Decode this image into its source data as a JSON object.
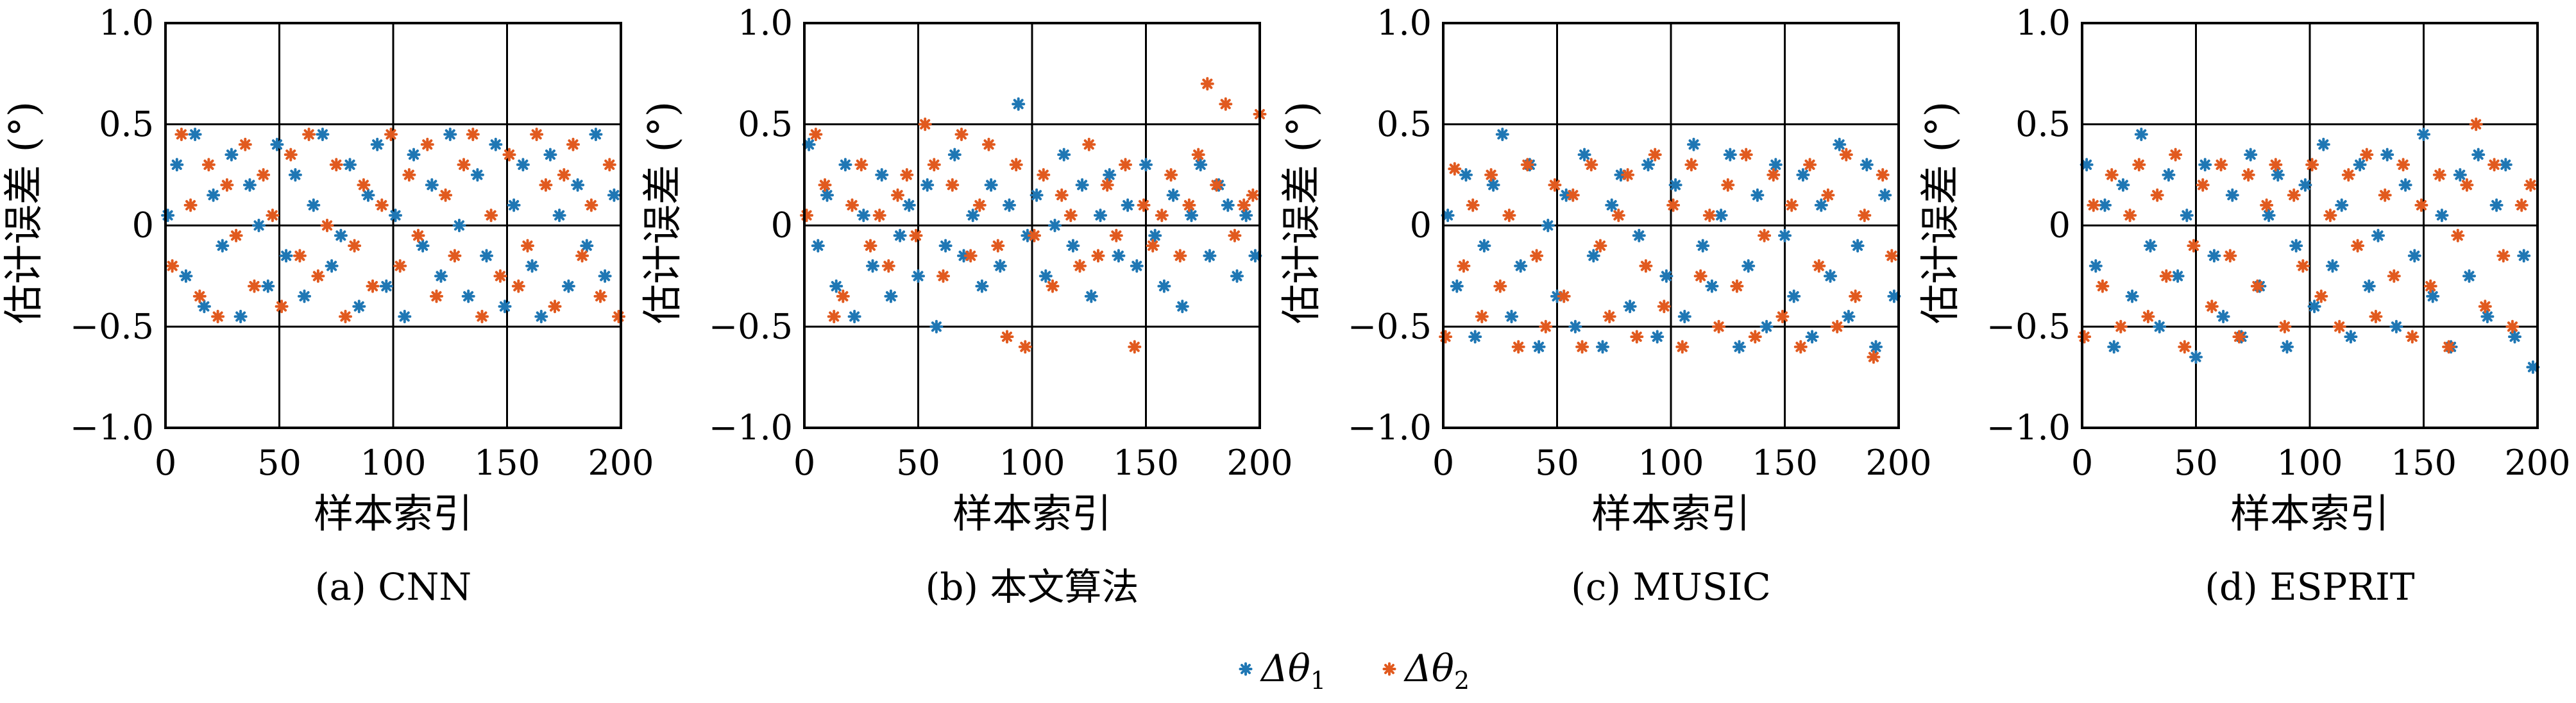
{
  "figure": {
    "legend": [
      {
        "label": "Δθ",
        "subscript": "1"
      },
      {
        "label": "Δθ",
        "subscript": "2"
      }
    ]
  },
  "colors": {
    "series1": "#1f77b4",
    "series2": "#e15a1f"
  },
  "chart_data": [
    {
      "type": "scatter",
      "caption": "(a) CNN",
      "xlabel": "样本索引",
      "ylabel": "估计误差 (°)",
      "xlim": [
        0,
        200
      ],
      "ylim": [
        -1.0,
        1.0
      ],
      "xticks": [
        0,
        50,
        100,
        150,
        200
      ],
      "yticks": [
        1.0,
        0.5,
        0,
        -0.5,
        -1.0
      ],
      "yticklabels": [
        "1.0",
        "0.5",
        "0",
        "−0.5",
        "−1.0"
      ],
      "grid": true,
      "series": [
        {
          "name": "Δθ1",
          "x": [
            1,
            5,
            9,
            13,
            17,
            21,
            25,
            29,
            33,
            37,
            41,
            45,
            49,
            53,
            57,
            61,
            65,
            69,
            73,
            77,
            81,
            85,
            89,
            93,
            97,
            101,
            105,
            109,
            113,
            117,
            121,
            125,
            129,
            133,
            137,
            141,
            145,
            149,
            153,
            157,
            161,
            165,
            169,
            173,
            177,
            181,
            185,
            189,
            193,
            197
          ],
          "y": [
            0.05,
            0.3,
            -0.25,
            0.45,
            -0.4,
            0.15,
            -0.1,
            0.35,
            -0.45,
            0.2,
            0.0,
            -0.3,
            0.4,
            -0.15,
            0.25,
            -0.35,
            0.1,
            0.45,
            -0.2,
            -0.05,
            0.3,
            -0.4,
            0.15,
            0.4,
            -0.3,
            0.05,
            -0.45,
            0.35,
            -0.1,
            0.2,
            -0.25,
            0.45,
            0.0,
            -0.35,
            0.25,
            -0.15,
            0.4,
            -0.4,
            0.1,
            0.3,
            -0.2,
            -0.45,
            0.35,
            0.05,
            -0.3,
            0.2,
            -0.1,
            0.45,
            -0.25,
            0.15
          ]
        },
        {
          "name": "Δθ2",
          "x": [
            3,
            7,
            11,
            15,
            19,
            23,
            27,
            31,
            35,
            39,
            43,
            47,
            51,
            55,
            59,
            63,
            67,
            71,
            75,
            79,
            83,
            87,
            91,
            95,
            99,
            103,
            107,
            111,
            115,
            119,
            123,
            127,
            131,
            135,
            139,
            143,
            147,
            151,
            155,
            159,
            163,
            167,
            171,
            175,
            179,
            183,
            187,
            191,
            195,
            199
          ],
          "y": [
            -0.2,
            0.45,
            0.1,
            -0.35,
            0.3,
            -0.45,
            0.2,
            -0.05,
            0.4,
            -0.3,
            0.25,
            0.05,
            -0.4,
            0.35,
            -0.15,
            0.45,
            -0.25,
            0.0,
            0.3,
            -0.45,
            -0.1,
            0.2,
            -0.3,
            0.1,
            0.45,
            -0.2,
            0.25,
            -0.05,
            0.4,
            -0.35,
            0.15,
            -0.15,
            0.3,
            0.45,
            -0.45,
            0.05,
            -0.25,
            0.35,
            -0.3,
            -0.1,
            0.45,
            0.2,
            -0.4,
            0.25,
            0.4,
            -0.15,
            0.1,
            -0.35,
            0.3,
            -0.45
          ]
        }
      ]
    },
    {
      "type": "scatter",
      "caption": "(b) 本文算法",
      "xlabel": "样本索引",
      "ylabel": "估计误差 (°)",
      "xlim": [
        0,
        200
      ],
      "ylim": [
        -1.0,
        1.0
      ],
      "xticks": [
        0,
        50,
        100,
        150,
        200
      ],
      "yticks": [
        1.0,
        0.5,
        0,
        -0.5,
        -1.0
      ],
      "yticklabels": [
        "1.0",
        "0.5",
        "0",
        "−0.5",
        "−1.0"
      ],
      "grid": true,
      "series": [
        {
          "name": "Δθ1",
          "x": [
            2,
            6,
            10,
            14,
            18,
            22,
            26,
            30,
            34,
            38,
            42,
            46,
            50,
            54,
            58,
            62,
            66,
            70,
            74,
            78,
            82,
            86,
            90,
            94,
            98,
            102,
            106,
            110,
            114,
            118,
            122,
            126,
            130,
            134,
            138,
            142,
            146,
            150,
            154,
            158,
            162,
            166,
            170,
            174,
            178,
            182,
            186,
            190,
            194,
            198
          ],
          "y": [
            0.4,
            -0.1,
            0.15,
            -0.3,
            0.3,
            -0.45,
            0.05,
            -0.2,
            0.25,
            -0.35,
            -0.05,
            0.1,
            -0.25,
            0.2,
            -0.5,
            -0.1,
            0.35,
            -0.15,
            0.05,
            -0.3,
            0.2,
            -0.2,
            0.1,
            0.6,
            -0.05,
            0.15,
            -0.25,
            0.0,
            0.35,
            -0.1,
            0.2,
            -0.35,
            0.05,
            0.25,
            -0.15,
            0.1,
            -0.2,
            0.3,
            -0.05,
            -0.3,
            0.15,
            -0.4,
            0.05,
            0.3,
            -0.15,
            0.2,
            0.1,
            -0.25,
            0.05,
            -0.15
          ]
        },
        {
          "name": "Δθ2",
          "x": [
            1,
            5,
            9,
            13,
            17,
            21,
            25,
            29,
            33,
            37,
            41,
            45,
            49,
            53,
            57,
            61,
            65,
            69,
            73,
            77,
            81,
            85,
            89,
            93,
            97,
            101,
            105,
            109,
            113,
            117,
            121,
            125,
            129,
            133,
            137,
            141,
            145,
            149,
            153,
            157,
            161,
            165,
            169,
            173,
            177,
            181,
            185,
            189,
            193,
            197,
            200
          ],
          "y": [
            0.05,
            0.45,
            0.2,
            -0.45,
            -0.35,
            0.1,
            0.3,
            -0.1,
            0.05,
            -0.2,
            0.15,
            0.25,
            -0.05,
            0.5,
            0.3,
            -0.25,
            0.2,
            0.45,
            -0.15,
            0.1,
            0.4,
            -0.1,
            -0.55,
            0.3,
            -0.6,
            -0.05,
            0.25,
            -0.3,
            0.15,
            0.05,
            -0.2,
            0.4,
            -0.15,
            0.2,
            -0.05,
            0.3,
            -0.6,
            0.1,
            -0.1,
            0.05,
            0.25,
            -0.15,
            0.1,
            0.35,
            0.7,
            0.2,
            0.6,
            -0.05,
            0.1,
            0.15,
            0.55
          ]
        }
      ]
    },
    {
      "type": "scatter",
      "caption": "(c) MUSIC",
      "xlabel": "样本索引",
      "ylabel": "估计误差 (°)",
      "xlim": [
        0,
        200
      ],
      "ylim": [
        -1.0,
        1.0
      ],
      "xticks": [
        0,
        50,
        100,
        150,
        200
      ],
      "yticks": [
        1.0,
        0.5,
        0,
        -0.5,
        -1.0
      ],
      "yticklabels": [
        "1.0",
        "0.5",
        "0",
        "−0.5",
        "−1.0"
      ],
      "grid": true,
      "series": [
        {
          "name": "Δθ1",
          "x": [
            2,
            6,
            10,
            14,
            18,
            22,
            26,
            30,
            34,
            38,
            42,
            46,
            50,
            54,
            58,
            62,
            66,
            70,
            74,
            78,
            82,
            86,
            90,
            94,
            98,
            102,
            106,
            110,
            114,
            118,
            122,
            126,
            130,
            134,
            138,
            142,
            146,
            150,
            154,
            158,
            162,
            166,
            170,
            174,
            178,
            182,
            186,
            190,
            194,
            198
          ],
          "y": [
            0.05,
            -0.3,
            0.25,
            -0.55,
            -0.1,
            0.2,
            0.45,
            -0.45,
            -0.2,
            0.3,
            -0.6,
            0.0,
            -0.35,
            0.15,
            -0.5,
            0.35,
            -0.15,
            -0.6,
            0.1,
            0.25,
            -0.4,
            -0.05,
            0.3,
            -0.55,
            -0.25,
            0.2,
            -0.45,
            0.4,
            -0.1,
            -0.3,
            0.05,
            0.35,
            -0.6,
            -0.2,
            0.15,
            -0.5,
            0.3,
            -0.05,
            -0.35,
            0.25,
            -0.55,
            0.1,
            -0.25,
            0.4,
            -0.45,
            -0.1,
            0.3,
            -0.6,
            0.15,
            -0.35
          ]
        },
        {
          "name": "Δθ2",
          "x": [
            1,
            5,
            9,
            13,
            17,
            21,
            25,
            29,
            33,
            37,
            41,
            45,
            49,
            53,
            57,
            61,
            65,
            69,
            73,
            77,
            81,
            85,
            89,
            93,
            97,
            101,
            105,
            109,
            113,
            117,
            121,
            125,
            129,
            133,
            137,
            141,
            145,
            149,
            153,
            157,
            161,
            165,
            169,
            173,
            177,
            181,
            185,
            189,
            193,
            197
          ],
          "y": [
            -0.55,
            0.28,
            -0.2,
            0.1,
            -0.45,
            0.25,
            -0.3,
            0.05,
            -0.6,
            0.3,
            -0.15,
            -0.5,
            0.2,
            -0.35,
            0.15,
            -0.6,
            0.3,
            -0.1,
            -0.45,
            0.05,
            0.25,
            -0.55,
            -0.2,
            0.35,
            -0.4,
            0.1,
            -0.6,
            0.3,
            -0.25,
            0.05,
            -0.5,
            0.2,
            -0.3,
            0.35,
            -0.55,
            -0.05,
            0.25,
            -0.45,
            0.1,
            -0.6,
            0.3,
            -0.2,
            0.15,
            -0.5,
            0.35,
            -0.35,
            0.05,
            -0.65,
            0.25,
            -0.15
          ]
        }
      ]
    },
    {
      "type": "scatter",
      "caption": "(d) ESPRIT",
      "xlabel": "样本索引",
      "ylabel": "估计误差 (°)",
      "xlim": [
        0,
        200
      ],
      "ylim": [
        -1.0,
        1.0
      ],
      "xticks": [
        0,
        50,
        100,
        150,
        200
      ],
      "yticks": [
        1.0,
        0.5,
        0,
        -0.5,
        -1.0
      ],
      "yticklabels": [
        "1.0",
        "0.5",
        "0",
        "−0.5",
        "−1.0"
      ],
      "grid": true,
      "series": [
        {
          "name": "Δθ1",
          "x": [
            2,
            6,
            10,
            14,
            18,
            22,
            26,
            30,
            34,
            38,
            42,
            46,
            50,
            54,
            58,
            62,
            66,
            70,
            74,
            78,
            82,
            86,
            90,
            94,
            98,
            102,
            106,
            110,
            114,
            118,
            122,
            126,
            130,
            134,
            138,
            142,
            146,
            150,
            154,
            158,
            162,
            166,
            170,
            174,
            178,
            182,
            186,
            190,
            194,
            198
          ],
          "y": [
            0.3,
            -0.2,
            0.1,
            -0.6,
            0.2,
            -0.35,
            0.45,
            -0.1,
            -0.5,
            0.25,
            -0.25,
            0.05,
            -0.65,
            0.3,
            -0.15,
            -0.45,
            0.15,
            -0.55,
            0.35,
            -0.3,
            0.05,
            0.25,
            -0.6,
            -0.1,
            0.2,
            -0.4,
            0.4,
            -0.2,
            0.1,
            -0.55,
            0.3,
            -0.3,
            -0.05,
            0.35,
            -0.5,
            0.2,
            -0.15,
            0.45,
            -0.35,
            0.05,
            -0.6,
            0.25,
            -0.25,
            0.35,
            -0.45,
            0.1,
            0.3,
            -0.55,
            -0.15,
            -0.7
          ]
        },
        {
          "name": "Δθ2",
          "x": [
            1,
            5,
            9,
            13,
            17,
            21,
            25,
            29,
            33,
            37,
            41,
            45,
            49,
            53,
            57,
            61,
            65,
            69,
            73,
            77,
            81,
            85,
            89,
            93,
            97,
            101,
            105,
            109,
            113,
            117,
            121,
            125,
            129,
            133,
            137,
            141,
            145,
            149,
            153,
            157,
            161,
            165,
            169,
            173,
            177,
            181,
            185,
            189,
            193,
            197
          ],
          "y": [
            -0.55,
            0.1,
            -0.3,
            0.25,
            -0.5,
            0.05,
            0.3,
            -0.45,
            0.15,
            -0.25,
            0.35,
            -0.6,
            -0.1,
            0.2,
            -0.4,
            0.3,
            -0.15,
            -0.55,
            0.25,
            -0.3,
            0.1,
            0.3,
            -0.5,
            0.15,
            -0.2,
            0.3,
            -0.35,
            0.05,
            -0.5,
            0.25,
            -0.1,
            0.35,
            -0.45,
            0.15,
            -0.25,
            0.3,
            -0.55,
            0.1,
            -0.3,
            0.25,
            -0.6,
            -0.05,
            0.2,
            0.5,
            -0.4,
            0.3,
            -0.15,
            -0.5,
            0.1,
            0.2
          ]
        }
      ]
    }
  ]
}
